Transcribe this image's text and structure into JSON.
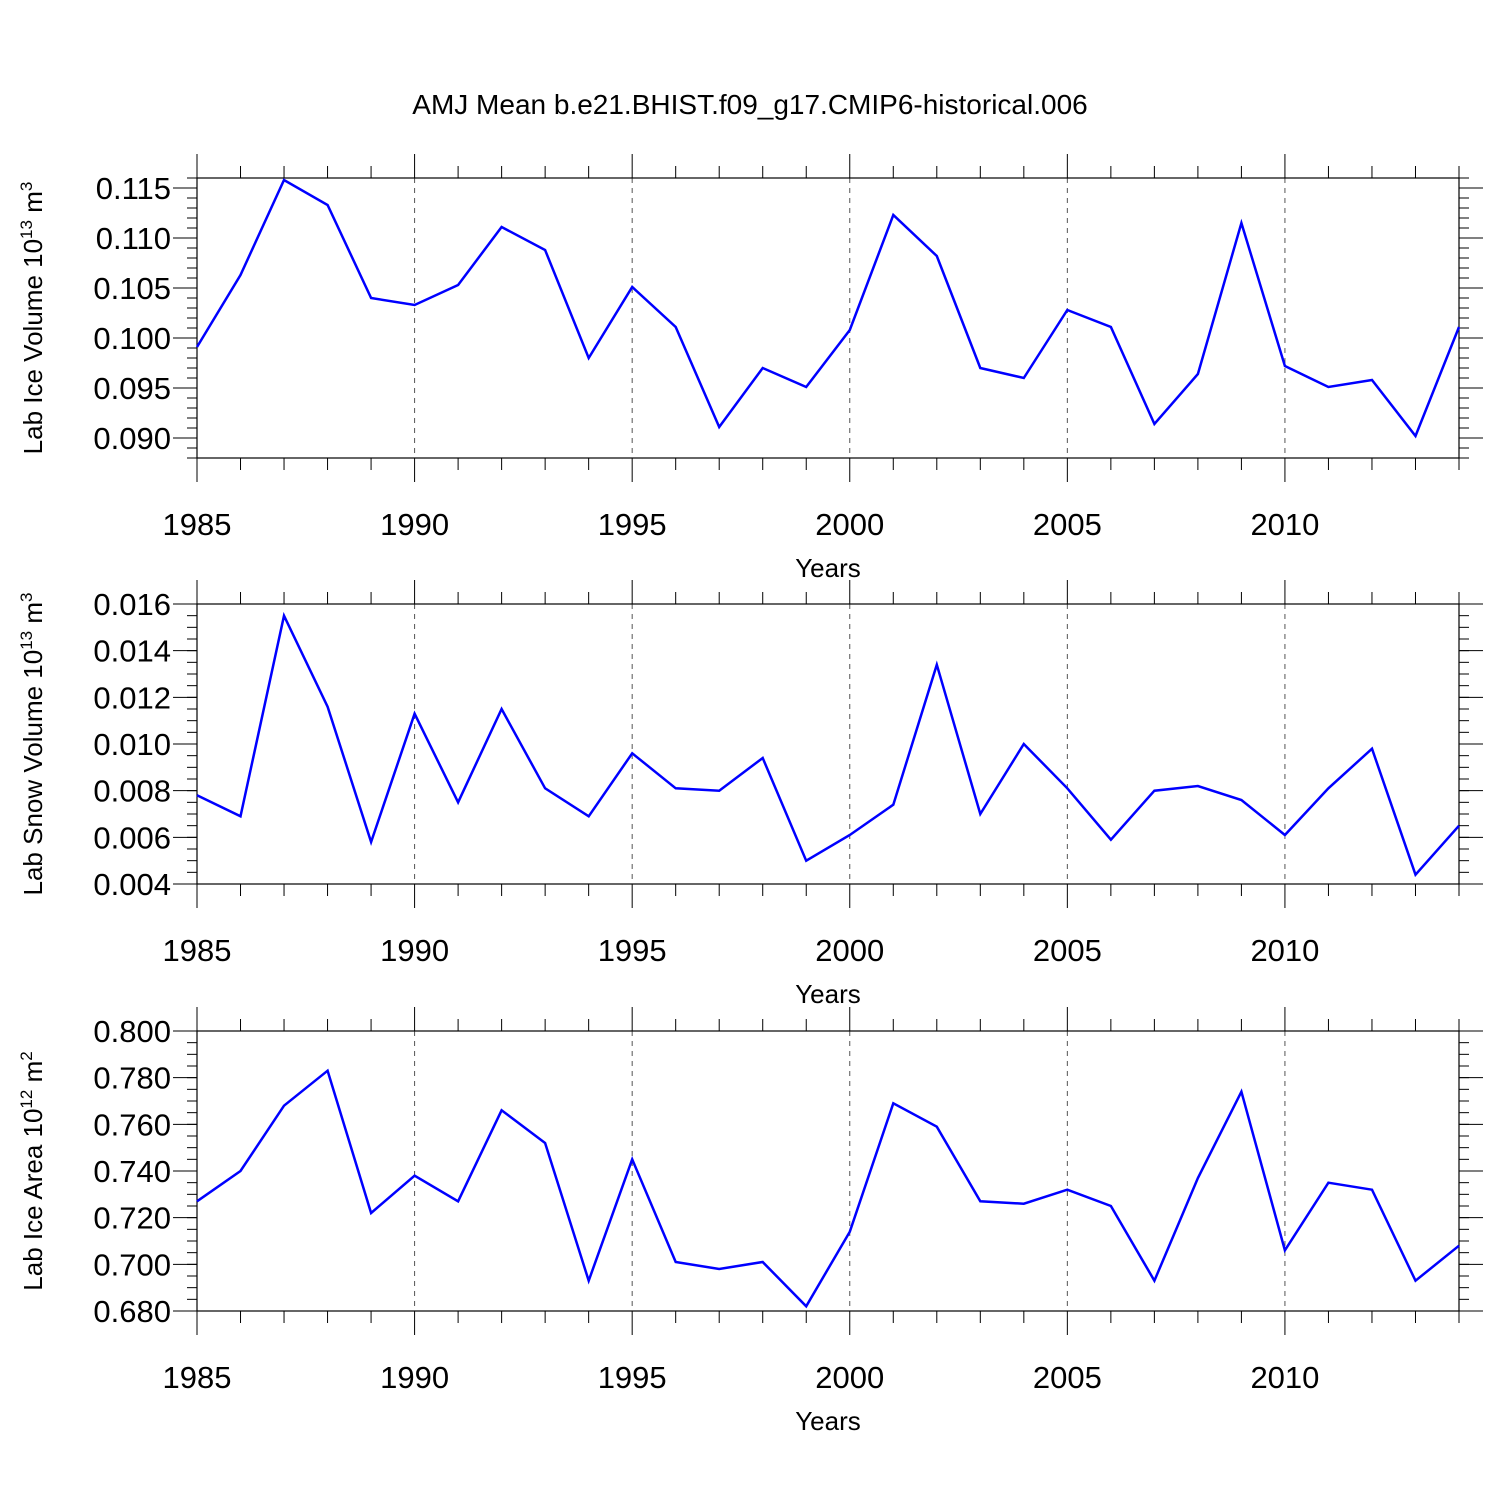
{
  "title": "AMJ Mean b.e21.BHIST.f09_g17.CMIP6-historical.006",
  "series_color": "#0000ff",
  "chart_data": [
    {
      "type": "line",
      "ylabel": "Lab Ice Volume 10",
      "ylabel_exp": "13",
      "ylabel_unit": " m",
      "ylabel_unit_exp": "3",
      "xlabel": "Years",
      "x": [
        1985,
        1986,
        1987,
        1988,
        1989,
        1990,
        1991,
        1992,
        1993,
        1994,
        1995,
        1996,
        1997,
        1998,
        1999,
        2000,
        2001,
        2002,
        2003,
        2004,
        2005,
        2006,
        2007,
        2008,
        2009,
        2010,
        2011,
        2012,
        2013,
        2014
      ],
      "values": [
        0.0991,
        0.1063,
        0.1158,
        0.1133,
        0.104,
        0.1033,
        0.1053,
        0.1111,
        0.1088,
        0.098,
        0.1051,
        0.1011,
        0.0911,
        0.097,
        0.0951,
        0.1008,
        0.1123,
        0.1082,
        0.097,
        0.096,
        0.1028,
        0.1011,
        0.0914,
        0.0964,
        0.1115,
        0.0972,
        0.0951,
        0.0958,
        0.0902,
        0.1011
      ],
      "ylim": [
        0.088,
        0.116
      ],
      "xlim": [
        1985,
        2014
      ],
      "yticks": [
        "0.090",
        "0.095",
        "0.100",
        "0.105",
        "0.110",
        "0.115"
      ],
      "ytick_values": [
        0.09,
        0.095,
        0.1,
        0.105,
        0.11,
        0.115
      ],
      "yminor_step": 0.001,
      "xticks": [
        "1985",
        "1990",
        "1995",
        "2000",
        "2005",
        "2010"
      ],
      "xtick_values": [
        1985,
        1990,
        1995,
        2000,
        2005,
        2010
      ],
      "grid_x": [
        1990,
        1995,
        2000,
        2005,
        2010
      ]
    },
    {
      "type": "line",
      "ylabel": "Lab Snow Volume 10",
      "ylabel_exp": "13",
      "ylabel_unit": " m",
      "ylabel_unit_exp": "3",
      "xlabel": "Years",
      "x": [
        1985,
        1986,
        1987,
        1988,
        1989,
        1990,
        1991,
        1992,
        1993,
        1994,
        1995,
        1996,
        1997,
        1998,
        1999,
        2000,
        2001,
        2002,
        2003,
        2004,
        2005,
        2006,
        2007,
        2008,
        2009,
        2010,
        2011,
        2012,
        2013,
        2014
      ],
      "values": [
        0.0078,
        0.0069,
        0.0155,
        0.0116,
        0.0058,
        0.0113,
        0.0075,
        0.0115,
        0.0081,
        0.0069,
        0.0096,
        0.0081,
        0.008,
        0.0094,
        0.005,
        0.0061,
        0.0074,
        0.0134,
        0.007,
        0.01,
        0.0081,
        0.0059,
        0.008,
        0.0082,
        0.0076,
        0.0061,
        0.0081,
        0.0098,
        0.0044,
        0.0065
      ],
      "ylim": [
        0.004,
        0.016
      ],
      "xlim": [
        1985,
        2014
      ],
      "yticks": [
        "0.004",
        "0.006",
        "0.008",
        "0.010",
        "0.012",
        "0.014",
        "0.016"
      ],
      "ytick_values": [
        0.004,
        0.006,
        0.008,
        0.01,
        0.012,
        0.014,
        0.016
      ],
      "yminor_step": 0.0005,
      "xticks": [
        "1985",
        "1990",
        "1995",
        "2000",
        "2005",
        "2010"
      ],
      "xtick_values": [
        1985,
        1990,
        1995,
        2000,
        2005,
        2010
      ],
      "grid_x": [
        1990,
        1995,
        2000,
        2005,
        2010
      ]
    },
    {
      "type": "line",
      "ylabel": "Lab Ice Area 10",
      "ylabel_exp": "12",
      "ylabel_unit": " m",
      "ylabel_unit_exp": "2",
      "xlabel": "Years",
      "x": [
        1985,
        1986,
        1987,
        1988,
        1989,
        1990,
        1991,
        1992,
        1993,
        1994,
        1995,
        1996,
        1997,
        1998,
        1999,
        2000,
        2001,
        2002,
        2003,
        2004,
        2005,
        2006,
        2007,
        2008,
        2009,
        2010,
        2011,
        2012,
        2013,
        2014
      ],
      "values": [
        0.727,
        0.74,
        0.768,
        0.783,
        0.722,
        0.738,
        0.727,
        0.766,
        0.752,
        0.693,
        0.745,
        0.701,
        0.698,
        0.701,
        0.682,
        0.714,
        0.769,
        0.759,
        0.727,
        0.726,
        0.732,
        0.725,
        0.693,
        0.737,
        0.774,
        0.706,
        0.735,
        0.732,
        0.693,
        0.708
      ],
      "ylim": [
        0.68,
        0.8
      ],
      "xlim": [
        1985,
        2014
      ],
      "yticks": [
        "0.680",
        "0.700",
        "0.720",
        "0.740",
        "0.760",
        "0.780",
        "0.800"
      ],
      "ytick_values": [
        0.68,
        0.7,
        0.72,
        0.74,
        0.76,
        0.78,
        0.8
      ],
      "yminor_step": 0.005,
      "xticks": [
        "1985",
        "1990",
        "1995",
        "2000",
        "2005",
        "2010"
      ],
      "xtick_values": [
        1985,
        1990,
        1995,
        2000,
        2005,
        2010
      ],
      "grid_x": [
        1990,
        1995,
        2000,
        2005,
        2010
      ]
    }
  ]
}
